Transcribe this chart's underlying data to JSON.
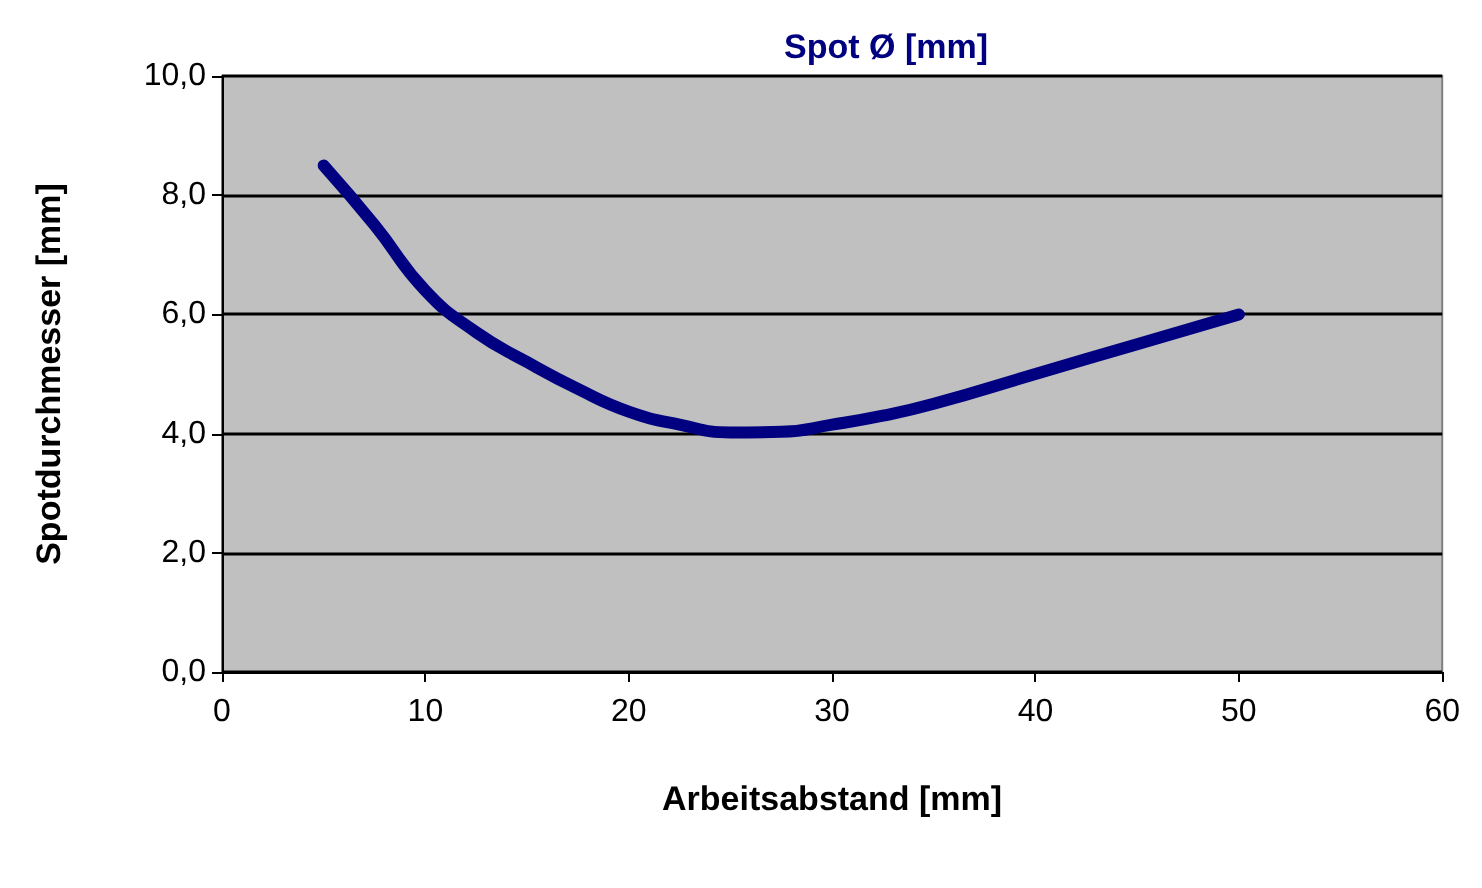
{
  "chart_data": {
    "type": "line",
    "title": "Spot Ø [mm]",
    "xlabel": "Arbeitsabstand [mm]",
    "ylabel": "Spotdurchmesser [mm]",
    "x": [
      5,
      7.5,
      10,
      12.5,
      15,
      17.5,
      20,
      22.5,
      25,
      27.5,
      30,
      32.5,
      35,
      40,
      45,
      50
    ],
    "series": [
      {
        "color": "#000080",
        "values": [
          8.5,
          7.5,
          6.4,
          5.7,
          5.2,
          4.75,
          4.37,
          4.15,
          4.02,
          4.03,
          4.15,
          4.3,
          4.5,
          5.0,
          5.5,
          6.0
        ]
      }
    ],
    "xlim": [
      0,
      60
    ],
    "xticks": [
      0,
      10,
      20,
      30,
      40,
      50,
      60
    ],
    "ylim": [
      0,
      10
    ],
    "yticks": [
      {
        "value": 0,
        "label": "0,0"
      },
      {
        "value": 2,
        "label": "2,0"
      },
      {
        "value": 4,
        "label": "4,0"
      },
      {
        "value": 6,
        "label": "6,0"
      },
      {
        "value": 8,
        "label": "8,0"
      },
      {
        "value": 10,
        "label": "10,0"
      }
    ],
    "grid": "y",
    "legend": false,
    "marker": "none",
    "line_style": "solid"
  }
}
